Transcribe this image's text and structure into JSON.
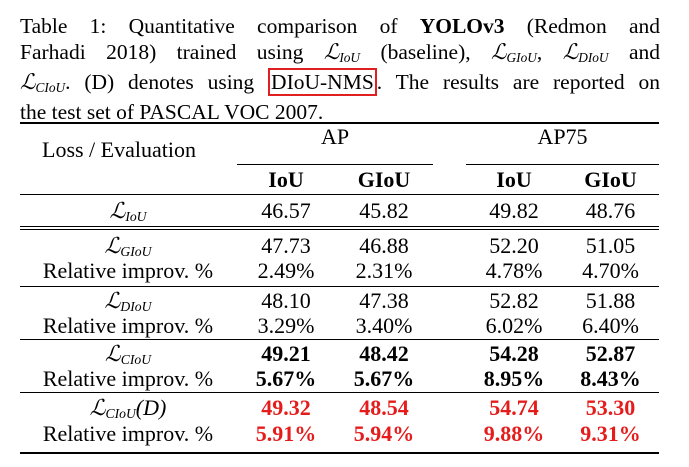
{
  "caption": {
    "line1_a": "Table 1: Quantitative comparison of ",
    "line1_b": "YOLOv3",
    "line1_c": " (Redmon and",
    "line2_a": "Farhadi 2018) trained using ",
    "line2_b": " (baseline), ",
    "line2_c": ", ",
    "line2_d": " and",
    "line3_a": ". (D) denotes using ",
    "line3_boxed": "DIoU-NMS",
    "line3_b": ". The results are reported on",
    "line4": "the test set of PASCAL VOC 2007."
  },
  "symbols": {
    "L": "ℒ",
    "IoU": "IoU",
    "GIoU": "GIoU",
    "DIoU": "DIoU",
    "CIoU": "CIoU",
    "CIoU_D": "(D)"
  },
  "header": {
    "loss_eval": "Loss / Evaluation",
    "ap": "AP",
    "ap75": "AP75",
    "iou": "IoU",
    "giou": "GIoU",
    "iou2": "IoU",
    "giou2": "GIoU"
  },
  "rows": {
    "liou": [
      "46.57",
      "45.82",
      "49.82",
      "48.76"
    ],
    "lgiou": [
      "47.73",
      "46.88",
      "52.20",
      "51.05"
    ],
    "lgiou_rel": {
      "label": "Relative improv. %",
      "values": [
        "2.49%",
        "2.31%",
        "4.78%",
        "4.70%"
      ]
    },
    "ldiou": [
      "48.10",
      "47.38",
      "52.82",
      "51.88"
    ],
    "ldiou_rel": {
      "label": "Relative improv. %",
      "values": [
        "3.29%",
        "3.40%",
        "6.02%",
        "6.40%"
      ]
    },
    "lciou": [
      "49.21",
      "48.42",
      "54.28",
      "52.87"
    ],
    "lciou_rel": {
      "label": "Relative improv. %",
      "values": [
        "5.67%",
        "5.67%",
        "8.95%",
        "8.43%"
      ]
    },
    "lcioud": [
      "49.32",
      "48.54",
      "54.74",
      "53.30"
    ],
    "lcioud_rel": {
      "label": "Relative improv. %",
      "values": [
        "5.91%",
        "5.94%",
        "9.88%",
        "9.31%"
      ]
    }
  },
  "colors": {
    "highlight_red": "#e51c1c",
    "box_red": "#e02020"
  }
}
